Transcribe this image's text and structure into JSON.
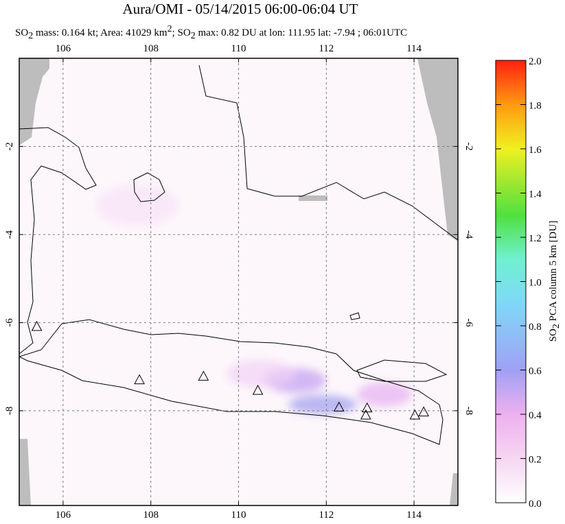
{
  "chart_data": {
    "type": "map",
    "title": "Aura/OMI - 05/14/2015 06:00-06:04 UT",
    "subtitle": [
      "SO",
      "2",
      " mass: 0.164 kt; Area: 41029 km",
      "2",
      "; SO",
      "2",
      " max: 0.82 DU at lon: 111.95 lat: -7.94 ; 06:01UTC"
    ],
    "xlim": [
      105,
      115
    ],
    "xticks": [
      106,
      108,
      110,
      112,
      114
    ],
    "ylim": [
      -10.15,
      0
    ],
    "yticks": [
      -2,
      -4,
      -6,
      -8
    ],
    "grid": true,
    "volcanoes": [
      [
        105.4,
        -6.1
      ],
      [
        107.74,
        -7.31
      ],
      [
        109.2,
        -7.23
      ],
      [
        110.44,
        -7.55
      ],
      [
        112.29,
        -7.93
      ],
      [
        112.93,
        -7.95
      ],
      [
        112.9,
        -8.11
      ],
      [
        114.02,
        -8.11
      ],
      [
        114.22,
        -8.04
      ]
    ],
    "colorbar": {
      "label": [
        "SO",
        "2",
        " PCA column 5 km [DU]"
      ],
      "ylim": [
        0,
        2
      ],
      "yticks": [
        {
          "value": 0,
          "label": "0.0"
        },
        0.2,
        0.4,
        0.6,
        0.8,
        {
          "value": 1,
          "label": "1.0"
        },
        1.2,
        1.4,
        1.6,
        1.8,
        {
          "value": 2,
          "label": "2.0"
        }
      ]
    }
  }
}
